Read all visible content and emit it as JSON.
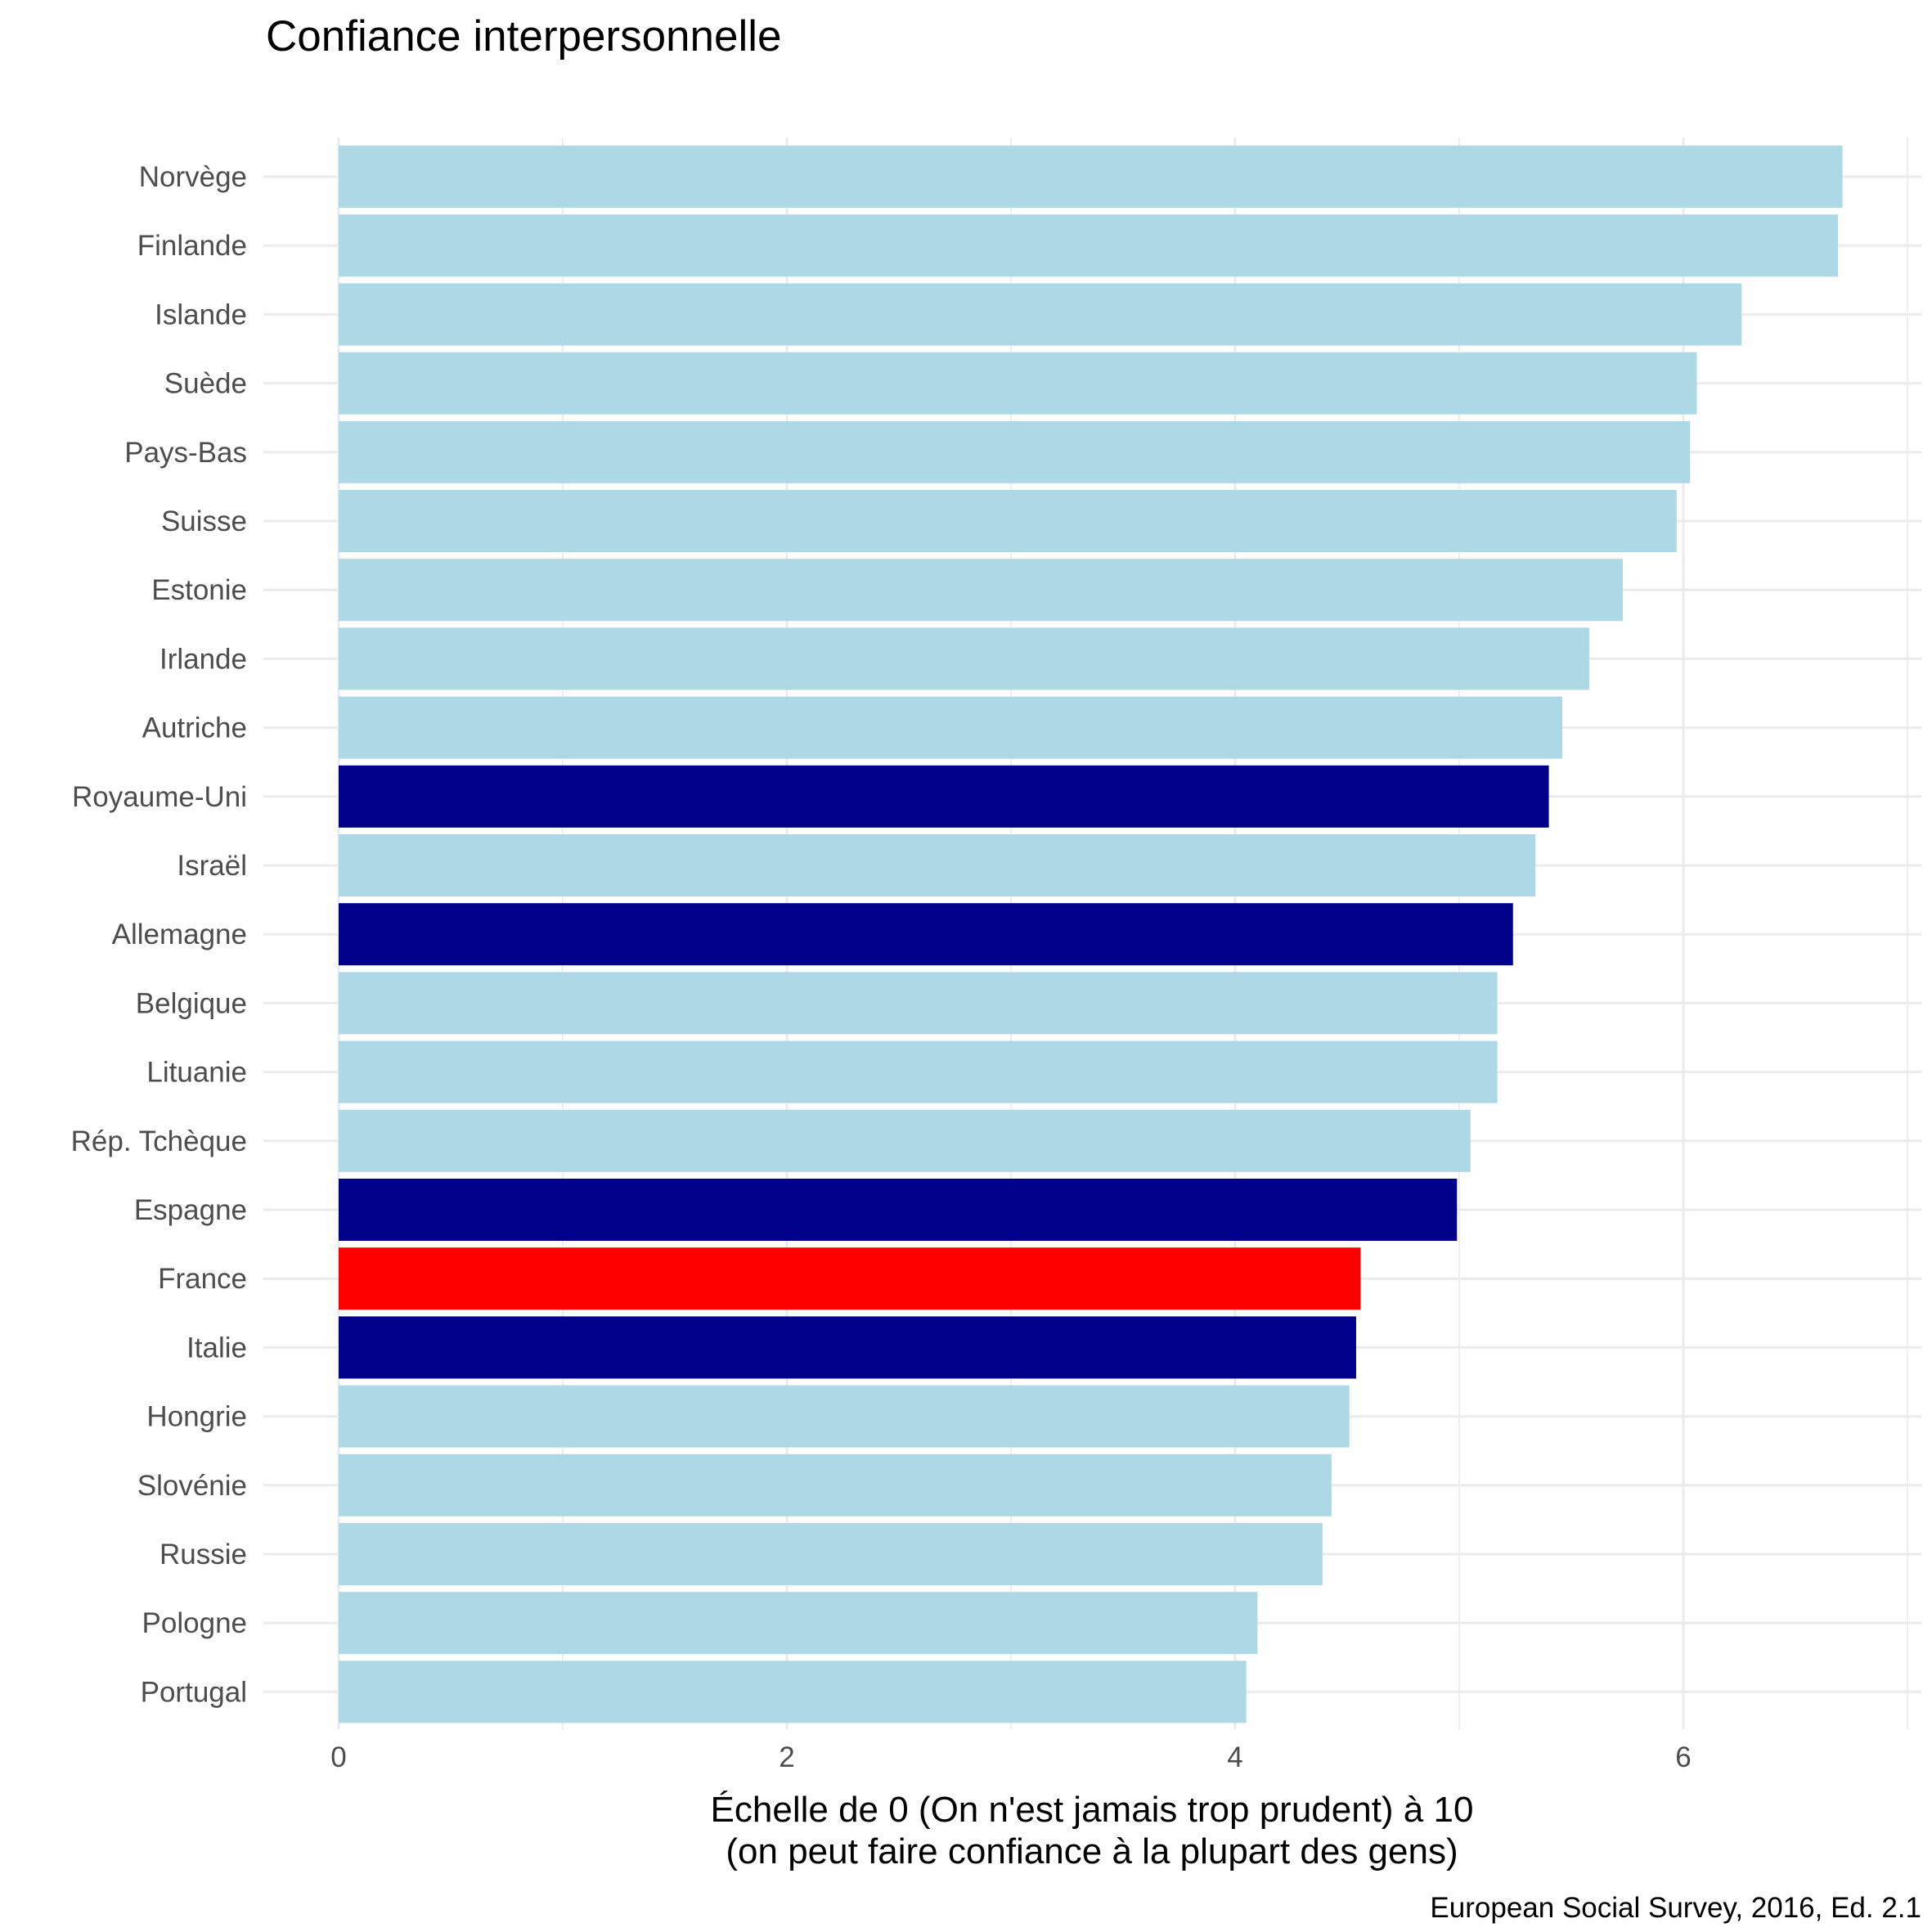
{
  "chart_data": {
    "type": "bar",
    "orientation": "horizontal",
    "title": "Confiance interpersonnelle",
    "xlabel_lines": [
      "Échelle de 0 (On n'est jamais trop prudent) à 10",
      "(on peut faire confiance à la plupart des gens)"
    ],
    "caption": "European Social Survey, 2016, Ed. 2.1",
    "xlim": [
      0,
      7
    ],
    "xticks": [
      0,
      2,
      4,
      6
    ],
    "grid": true,
    "legend": "none",
    "colors": {
      "default": "#add8e6",
      "highlight": "#00008b",
      "france": "#ff0000"
    },
    "categories": [
      "Norvège",
      "Finlande",
      "Islande",
      "Suède",
      "Pays-Bas",
      "Suisse",
      "Estonie",
      "Irlande",
      "Autriche",
      "Royaume-Uni",
      "Israël",
      "Allemagne",
      "Belgique",
      "Lituanie",
      "Rép. Tchèque",
      "Espagne",
      "France",
      "Italie",
      "Hongrie",
      "Slovénie",
      "Russie",
      "Pologne",
      "Portugal"
    ],
    "values": [
      6.71,
      6.69,
      6.26,
      6.06,
      6.03,
      5.97,
      5.73,
      5.58,
      5.46,
      5.4,
      5.34,
      5.24,
      5.17,
      5.17,
      5.05,
      4.99,
      4.56,
      4.54,
      4.51,
      4.43,
      4.39,
      4.1,
      4.05
    ],
    "groups": [
      "default",
      "default",
      "default",
      "default",
      "default",
      "default",
      "default",
      "default",
      "default",
      "highlight",
      "default",
      "highlight",
      "default",
      "default",
      "default",
      "highlight",
      "france",
      "highlight",
      "default",
      "default",
      "default",
      "default",
      "default"
    ]
  }
}
